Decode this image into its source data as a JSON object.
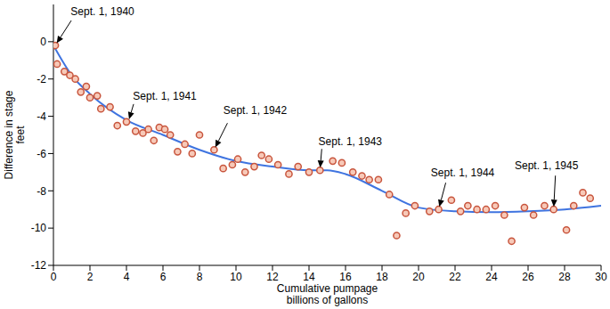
{
  "chart_data": {
    "type": "scatter",
    "x_label": "Cumulative pumpage\nbillions of gallons",
    "y_label": "Difference in stage\nfeet",
    "xlim": [
      0,
      30
    ],
    "xticks": [
      0,
      2,
      4,
      6,
      8,
      10,
      12,
      14,
      16,
      18,
      20,
      22,
      24,
      26,
      28,
      30
    ],
    "ylim": [
      -12,
      2
    ],
    "yticks": [
      -12,
      -10,
      -8,
      -6,
      -4,
      -2,
      0
    ],
    "grid": false,
    "series": [
      {
        "type": "scatter",
        "color": "#c8553d",
        "marker": "circle",
        "x": [
          0.1,
          0.2,
          0.6,
          0.9,
          1.2,
          1.5,
          1.8,
          2.0,
          2.4,
          2.6,
          3.1,
          3.5,
          4.0,
          4.5,
          4.9,
          5.2,
          5.5,
          5.8,
          6.1,
          6.4,
          6.8,
          7.2,
          7.6,
          8.0,
          8.8,
          9.3,
          9.8,
          10.1,
          10.5,
          11.0,
          11.4,
          11.8,
          12.3,
          12.9,
          13.4,
          14.0,
          14.6,
          15.3,
          15.8,
          16.4,
          16.9,
          17.3,
          17.8,
          18.4,
          18.8,
          19.3,
          19.8,
          20.6,
          21.1,
          21.8,
          22.3,
          22.7,
          23.2,
          23.7,
          24.2,
          24.7,
          25.1,
          25.8,
          26.3,
          26.9,
          27.4,
          28.1,
          28.5,
          29.0,
          29.4
        ],
        "values": [
          -0.2,
          -1.2,
          -1.6,
          -1.8,
          -2.0,
          -2.7,
          -2.4,
          -3.0,
          -2.9,
          -3.6,
          -3.5,
          -4.5,
          -4.3,
          -4.8,
          -4.9,
          -4.7,
          -5.3,
          -4.6,
          -4.7,
          -5.0,
          -5.9,
          -5.5,
          -6.0,
          -5.0,
          -5.8,
          -6.8,
          -6.6,
          -6.3,
          -7.0,
          -6.7,
          -6.1,
          -6.3,
          -6.6,
          -7.1,
          -6.7,
          -7.0,
          -6.9,
          -6.4,
          -6.5,
          -7.0,
          -7.2,
          -7.4,
          -7.4,
          -8.2,
          -10.4,
          -9.2,
          -8.8,
          -9.1,
          -9.0,
          -8.5,
          -9.1,
          -8.8,
          -9.0,
          -9.0,
          -8.8,
          -9.3,
          -10.7,
          -8.9,
          -9.3,
          -8.8,
          -9.0,
          -10.1,
          -8.8,
          -8.1,
          -8.4
        ]
      },
      {
        "type": "line",
        "color": "#3f74e0",
        "line_style": "solid",
        "x": [
          0,
          1,
          2,
          4,
          6,
          8,
          10,
          12,
          14,
          15,
          16,
          18,
          20,
          22,
          24,
          26,
          28,
          30
        ],
        "values": [
          -0.2,
          -1.8,
          -2.8,
          -4.2,
          -5.0,
          -5.8,
          -6.4,
          -6.7,
          -6.9,
          -6.9,
          -7.1,
          -8.0,
          -8.9,
          -9.1,
          -9.15,
          -9.1,
          -9.0,
          -8.8
        ]
      }
    ],
    "annotations": [
      {
        "text": "Sept. 1, 1940",
        "x": 0.1,
        "y": -0.2
      },
      {
        "text": "Sept. 1, 1941",
        "x": 4.1,
        "y": -4.3
      },
      {
        "text": "Sept. 1, 1942",
        "x": 8.8,
        "y": -5.8
      },
      {
        "text": "Sept. 1, 1943",
        "x": 14.6,
        "y": -6.9
      },
      {
        "text": "Sept. 1, 1944",
        "x": 21.1,
        "y": -9.0
      },
      {
        "text": "Sept. 1, 1945",
        "x": 27.4,
        "y": -9.0
      }
    ]
  }
}
